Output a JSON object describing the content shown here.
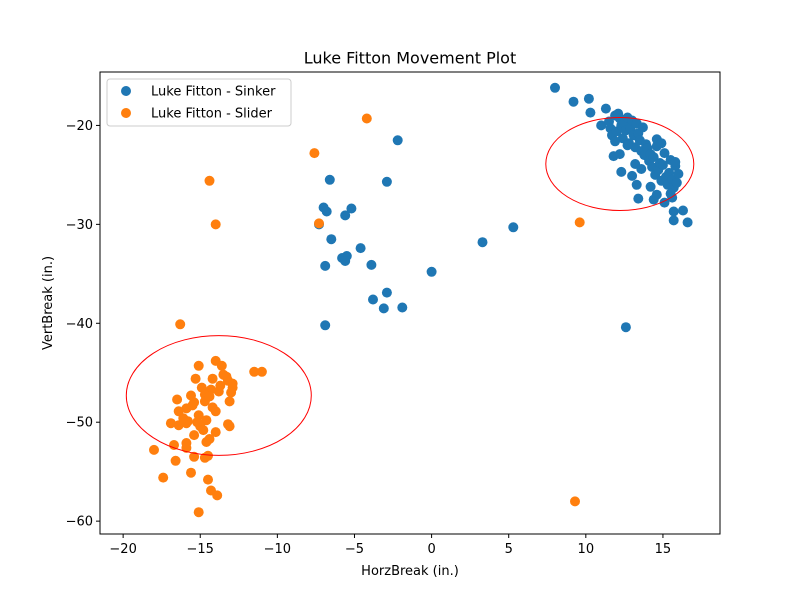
{
  "chart_data": {
    "type": "scatter",
    "title": "Luke Fitton Movement Plot",
    "xlabel": "HorzBreak (in.)",
    "ylabel": "VertBreak (in.)",
    "xlim": [
      -21.5,
      18.7
    ],
    "ylim": [
      -61.3,
      -14.6
    ],
    "xticks": [
      -20,
      -15,
      -10,
      -5,
      0,
      5,
      10,
      15
    ],
    "yticks": [
      -60,
      -50,
      -40,
      -30,
      -20
    ],
    "xtick_labels": [
      "−20",
      "−15",
      "−10",
      "−5",
      "0",
      "5",
      "10",
      "15"
    ],
    "ytick_labels": [
      "−60",
      "−50",
      "−40",
      "−30",
      "−20"
    ],
    "grid": false,
    "legend_position": "top-left",
    "series": [
      {
        "name": "Luke Fitton - Sinker",
        "color": "#1f77b4",
        "points": [
          [
            8.0,
            -16.2
          ],
          [
            9.2,
            -17.6
          ],
          [
            10.2,
            -17.3
          ],
          [
            10.3,
            -18.7
          ],
          [
            11.0,
            -20.0
          ],
          [
            11.3,
            -18.3
          ],
          [
            11.5,
            -19.6
          ],
          [
            11.6,
            -20.3
          ],
          [
            11.7,
            -21.0
          ],
          [
            11.9,
            -19.0
          ],
          [
            12.0,
            -20.6
          ],
          [
            12.1,
            -18.8
          ],
          [
            12.2,
            -19.3
          ],
          [
            12.3,
            -20.0
          ],
          [
            12.4,
            -21.3
          ],
          [
            12.5,
            -19.8
          ],
          [
            12.6,
            -20.5
          ],
          [
            12.7,
            -19.2
          ],
          [
            12.8,
            -21.8
          ],
          [
            12.9,
            -20.3
          ],
          [
            13.0,
            -19.5
          ],
          [
            13.1,
            -21.0
          ],
          [
            13.2,
            -22.2
          ],
          [
            13.3,
            -19.8
          ],
          [
            13.4,
            -20.8
          ],
          [
            13.5,
            -21.5
          ],
          [
            13.6,
            -22.6
          ],
          [
            13.7,
            -20.2
          ],
          [
            13.8,
            -23.0
          ],
          [
            13.9,
            -21.9
          ],
          [
            14.0,
            -22.3
          ],
          [
            14.1,
            -23.6
          ],
          [
            14.2,
            -22.9
          ],
          [
            14.3,
            -24.2
          ],
          [
            14.4,
            -23.2
          ],
          [
            14.5,
            -25.0
          ],
          [
            14.6,
            -22.1
          ],
          [
            14.7,
            -24.5
          ],
          [
            14.8,
            -23.8
          ],
          [
            14.9,
            -25.6
          ],
          [
            15.0,
            -24.0
          ],
          [
            15.1,
            -22.8
          ],
          [
            15.2,
            -25.2
          ],
          [
            15.3,
            -26.0
          ],
          [
            15.4,
            -24.8
          ],
          [
            15.5,
            -23.5
          ],
          [
            15.6,
            -25.5
          ],
          [
            15.7,
            -26.3
          ],
          [
            15.8,
            -24.1
          ],
          [
            15.9,
            -25.8
          ],
          [
            16.0,
            -24.9
          ],
          [
            11.8,
            -23.1
          ],
          [
            12.2,
            -22.9
          ],
          [
            12.3,
            -24.7
          ],
          [
            13.0,
            -25.1
          ],
          [
            13.3,
            -26.0
          ],
          [
            13.4,
            -27.4
          ],
          [
            14.4,
            -27.5
          ],
          [
            14.6,
            -27.0
          ],
          [
            15.1,
            -27.8
          ],
          [
            15.6,
            -27.3
          ],
          [
            15.7,
            -28.7
          ],
          [
            16.3,
            -28.6
          ],
          [
            16.6,
            -29.8
          ],
          [
            15.7,
            -29.6
          ],
          [
            12.6,
            -40.4
          ],
          [
            14.6,
            -21.4
          ],
          [
            14.9,
            -21.8
          ],
          [
            15.8,
            -23.7
          ],
          [
            13.2,
            -23.9
          ],
          [
            12.7,
            -22.0
          ],
          [
            13.6,
            -24.4
          ],
          [
            14.2,
            -26.2
          ],
          [
            15.5,
            -26.9
          ],
          [
            11.9,
            -21.6
          ],
          [
            -2.2,
            -21.5
          ],
          [
            -2.9,
            -25.7
          ],
          [
            -6.6,
            -25.5
          ],
          [
            -7.0,
            -28.3
          ],
          [
            -6.8,
            -28.7
          ],
          [
            -5.6,
            -29.1
          ],
          [
            -5.2,
            -28.4
          ],
          [
            -7.3,
            -30.0
          ],
          [
            -6.5,
            -31.5
          ],
          [
            -4.6,
            -32.4
          ],
          [
            -5.8,
            -33.4
          ],
          [
            -5.5,
            -33.2
          ],
          [
            -5.6,
            -33.7
          ],
          [
            -6.9,
            -34.2
          ],
          [
            -3.9,
            -34.1
          ],
          [
            -3.8,
            -37.6
          ],
          [
            -2.9,
            -36.9
          ],
          [
            -3.1,
            -38.5
          ],
          [
            -1.9,
            -38.4
          ],
          [
            -6.9,
            -40.2
          ],
          [
            0.0,
            -34.8
          ],
          [
            3.3,
            -31.8
          ],
          [
            5.3,
            -30.3
          ]
        ]
      },
      {
        "name": "Luke Fitton - Slider",
        "color": "#ff7f0e",
        "points": [
          [
            -4.2,
            -19.3
          ],
          [
            -7.6,
            -22.8
          ],
          [
            -14.4,
            -25.6
          ],
          [
            -14.0,
            -30.0
          ],
          [
            -7.3,
            -29.9
          ],
          [
            9.6,
            -29.8
          ],
          [
            9.3,
            -58.0
          ],
          [
            -16.3,
            -40.1
          ],
          [
            -11.0,
            -44.9
          ],
          [
            -11.5,
            -44.9
          ],
          [
            -14.0,
            -43.8
          ],
          [
            -13.6,
            -44.3
          ],
          [
            -13.5,
            -45.2
          ],
          [
            -13.2,
            -45.8
          ],
          [
            -12.9,
            -46.1
          ],
          [
            -13.7,
            -46.3
          ],
          [
            -14.3,
            -46.7
          ],
          [
            -14.7,
            -47.2
          ],
          [
            -15.4,
            -48.0
          ],
          [
            -15.9,
            -48.6
          ],
          [
            -16.4,
            -48.9
          ],
          [
            -15.1,
            -49.3
          ],
          [
            -14.6,
            -49.8
          ],
          [
            -14.0,
            -48.9
          ],
          [
            -13.1,
            -47.9
          ],
          [
            -12.9,
            -46.5
          ],
          [
            -13.3,
            -45.4
          ],
          [
            -14.2,
            -45.6
          ],
          [
            -15.3,
            -45.6
          ],
          [
            -15.1,
            -44.3
          ],
          [
            -14.7,
            -47.9
          ],
          [
            -15.5,
            -48.3
          ],
          [
            -16.5,
            -47.7
          ],
          [
            -15.0,
            -50.4
          ],
          [
            -14.8,
            -50.8
          ],
          [
            -15.4,
            -51.3
          ],
          [
            -14.6,
            -52.0
          ],
          [
            -14.4,
            -51.7
          ],
          [
            -14.0,
            -51.0
          ],
          [
            -13.2,
            -50.2
          ],
          [
            -13.1,
            -50.4
          ],
          [
            -15.2,
            -50.0
          ],
          [
            -16.4,
            -50.3
          ],
          [
            -15.9,
            -50.1
          ],
          [
            -16.9,
            -50.1
          ],
          [
            -15.8,
            -49.9
          ],
          [
            -16.1,
            -49.6
          ],
          [
            -16.7,
            -52.3
          ],
          [
            -15.9,
            -52.6
          ],
          [
            -15.9,
            -52.1
          ],
          [
            -15.4,
            -53.5
          ],
          [
            -14.7,
            -53.6
          ],
          [
            -14.5,
            -53.4
          ],
          [
            -16.6,
            -53.9
          ],
          [
            -15.6,
            -55.1
          ],
          [
            -17.4,
            -55.6
          ],
          [
            -14.5,
            -55.8
          ],
          [
            -14.3,
            -56.9
          ],
          [
            -13.9,
            -57.4
          ],
          [
            -15.1,
            -59.1
          ],
          [
            -18.0,
            -52.8
          ],
          [
            -14.2,
            -48.5
          ],
          [
            -13.8,
            -46.9
          ],
          [
            -14.9,
            -46.5
          ],
          [
            -15.6,
            -47.3
          ],
          [
            -13.0,
            -47.0
          ],
          [
            -14.4,
            -47.4
          ]
        ]
      }
    ],
    "ellipses": [
      {
        "center": [
          12.2,
          -23.9
        ],
        "width": 9.6,
        "height": 9.4,
        "color": "#ff0000"
      },
      {
        "center": [
          -13.8,
          -47.3
        ],
        "width": 12.0,
        "height": 12.1,
        "color": "#ff0000"
      }
    ]
  }
}
